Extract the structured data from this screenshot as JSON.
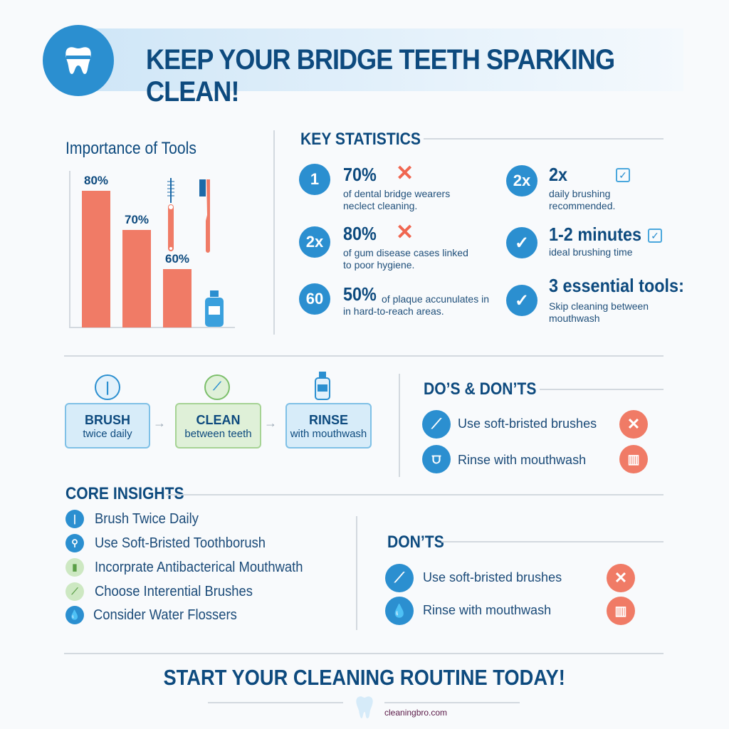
{
  "header": {
    "title": "KEEP YOUR BRIDGE TEETH SPARKING CLEAN!"
  },
  "tools": {
    "heading": "Importance of Tools"
  },
  "chart_data": {
    "type": "bar",
    "categories": [
      "",
      "",
      ""
    ],
    "values": [
      80,
      70,
      60
    ],
    "data_labels": [
      "80%",
      "70%",
      "60%"
    ],
    "color": "#f07b66"
  },
  "stats": {
    "heading": "KEY STATISTICS",
    "items": [
      {
        "badge": "1",
        "value": "70%",
        "text": [
          "of dental bridge wearers",
          "neclect cleaning."
        ],
        "mark": "x-icon"
      },
      {
        "badge": "2x",
        "value": "80%",
        "text": [
          "of gum disease cases linked",
          "to poor hygiene."
        ],
        "mark": "x-icon"
      },
      {
        "badge": "60",
        "value": "50%",
        "text": [
          "of plaque accunulates in",
          "in hard-to-reach areas."
        ]
      },
      {
        "badge": "2x",
        "value": "2x",
        "text": [
          "daily brushing",
          "recommended."
        ],
        "mark": "checkbox-icon"
      },
      {
        "badge": "check",
        "value": "1-2 minutes",
        "text": [
          "ideal brushing time"
        ],
        "mark": "checkbox-icon"
      },
      {
        "badge": "check",
        "value": "3 essential tools:",
        "text": [
          "Skip cleaning between",
          "mouthwash"
        ]
      }
    ]
  },
  "steps": [
    {
      "title": "BRUSH",
      "sub": "twice daily"
    },
    {
      "title": "CLEAN",
      "sub": "between teeth"
    },
    {
      "title": "RINSE",
      "sub": "with mouthwash"
    }
  ],
  "dos": {
    "heading": "DO’S & DON’TS",
    "items": [
      "Use soft-bristed brushes",
      "Rinse with mouthwash"
    ]
  },
  "insights": {
    "heading": "CORE INSIGHTS",
    "items": [
      "Brush Twice Daily",
      "Use Soft-Bristed Toothborush",
      "Incorprate Antibacterical Mouthwath",
      "Choose Interential Brushes",
      "Consider Water Flossers"
    ]
  },
  "donts": {
    "heading": "DON’TS",
    "items": [
      "Use soft-bristed brushes",
      "Rinse with mouthwash"
    ]
  },
  "footer": {
    "cta": "START YOUR CLEANING ROUTINE TODAY!",
    "watermark": "cleaningbro.com"
  },
  "colors": {
    "navy": "#0d4a7e",
    "blue": "#2b8fd0",
    "coral": "#f07b66"
  }
}
